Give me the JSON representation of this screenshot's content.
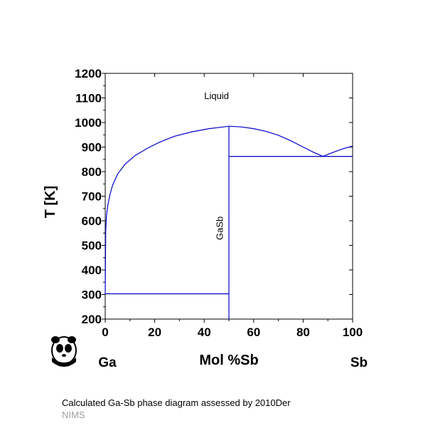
{
  "chart_data": {
    "type": "line",
    "title": "",
    "xlabel": "Mol %Sb",
    "ylabel": "T [K]",
    "xlim": [
      0,
      100
    ],
    "ylim": [
      200,
      1200
    ],
    "x_ticks": [
      0,
      20,
      40,
      60,
      80,
      100
    ],
    "y_ticks": [
      200,
      300,
      400,
      500,
      600,
      700,
      800,
      900,
      1000,
      1100,
      1200
    ],
    "x_ticks_labels": [
      "0",
      "20",
      "40",
      "60",
      "80",
      "100"
    ],
    "y_ticks_labels": [
      "200",
      "300",
      "400",
      "500",
      "600",
      "700",
      "800",
      "900",
      "1000",
      "1100",
      "1200"
    ],
    "left_component": "Ga",
    "right_component": "Sb",
    "line_color": "#0000cc",
    "grid": false,
    "regions": [
      {
        "label": "Liquid",
        "x": 45,
        "y": 1095
      },
      {
        "label": "GaSb",
        "x": 47.5,
        "y": 570,
        "rotated": true
      }
    ],
    "series": [
      {
        "values": [
          [
            0,
            303
          ],
          [
            0.2,
            560
          ],
          [
            0.5,
            620
          ],
          [
            1,
            660
          ],
          [
            2,
            710
          ],
          [
            3,
            745
          ],
          [
            5,
            790
          ],
          [
            8,
            830
          ],
          [
            12,
            865
          ],
          [
            17,
            895
          ],
          [
            22,
            920
          ],
          [
            28,
            944
          ],
          [
            35,
            962
          ],
          [
            42,
            975
          ],
          [
            47,
            981
          ],
          [
            50,
            985
          ]
        ]
      },
      {
        "values": [
          [
            50,
            985
          ],
          [
            55,
            982
          ],
          [
            60,
            975
          ],
          [
            65,
            964
          ],
          [
            70,
            948
          ],
          [
            75,
            926
          ],
          [
            80,
            900
          ],
          [
            84,
            880
          ],
          [
            88,
            862
          ]
        ]
      },
      {
        "values": [
          [
            88,
            862
          ],
          [
            92,
            878
          ],
          [
            96,
            893
          ],
          [
            100,
            904
          ]
        ]
      },
      {
        "values": [
          [
            0,
            303
          ],
          [
            50,
            303
          ]
        ]
      },
      {
        "values": [
          [
            50,
            862
          ],
          [
            100,
            862
          ]
        ]
      },
      {
        "values": [
          [
            50,
            200
          ],
          [
            50,
            985
          ]
        ]
      }
    ]
  },
  "caption": "Calculated Ga-Sb phase diagram assessed by 2010Der",
  "source": "NIMS",
  "logo_icon": "panda-icon"
}
